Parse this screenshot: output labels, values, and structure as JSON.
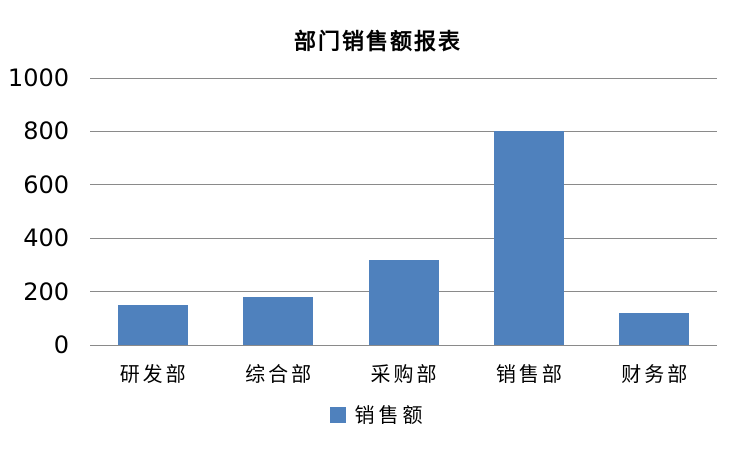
{
  "title": "部门销售额报表",
  "colors": {
    "bar": "#4F81BD",
    "gridline": "#8A8A8A",
    "text": "#000000",
    "background": "#FFFFFF"
  },
  "legend": {
    "label": "销售额",
    "marker_color": "#4F81BD",
    "position": "bottom"
  },
  "chart_data": {
    "type": "bar",
    "title": "部门销售额报表",
    "categories": [
      "研发部",
      "综合部",
      "采购部",
      "销售部",
      "财务部"
    ],
    "series": [
      {
        "name": "销售额",
        "values": [
          150,
          180,
          320,
          800,
          120
        ]
      }
    ],
    "xlabel": "",
    "ylabel": "",
    "ylim": [
      0,
      1000
    ],
    "yticks": [
      0,
      200,
      400,
      600,
      800,
      1000
    ],
    "grid": true,
    "legend_position": "bottom"
  }
}
